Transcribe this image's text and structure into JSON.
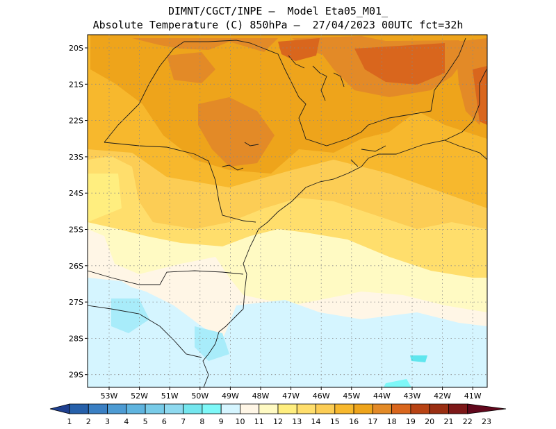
{
  "title": {
    "line1": "DIMNT/CGCT/INPE –  Model Eta05_M01_",
    "line2": "Absolute Temperature (C) 850hPa –  27/04/2023 00UTC fct=32h"
  },
  "map": {
    "lat_labels": [
      "20S",
      "21S",
      "22S",
      "23S",
      "24S",
      "25S",
      "26S",
      "27S",
      "28S",
      "29S"
    ],
    "lon_labels": [
      "53W",
      "52W",
      "51W",
      "50W",
      "49W",
      "48W",
      "47W",
      "46W",
      "45W",
      "44W",
      "43W",
      "42W",
      "41W"
    ]
  },
  "colorbar": {
    "labels": [
      "1",
      "2",
      "3",
      "4",
      "5",
      "6",
      "7",
      "8",
      "9",
      "10",
      "11",
      "12",
      "13",
      "14",
      "15",
      "16",
      "17",
      "18",
      "19",
      "20",
      "21",
      "22",
      "23"
    ],
    "colors": [
      "#1e3f8f",
      "#2660aa",
      "#3a7fc3",
      "#4d9bd3",
      "#5fb4df",
      "#78cbe8",
      "#8ed9ef",
      "#74e6ee",
      "#7ef8f8",
      "#d5f5ff",
      "#fff6e6",
      "#fffac3",
      "#ffee7f",
      "#ffde6c",
      "#fccd55",
      "#f7b82d",
      "#eea41b",
      "#e38a27",
      "#d9661d",
      "#b84314",
      "#9a2e12",
      "#7d1818",
      "#61071c"
    ]
  }
}
